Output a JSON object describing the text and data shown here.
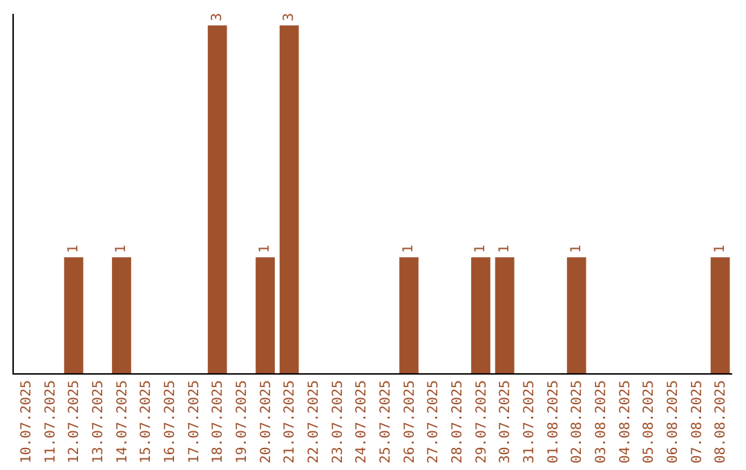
{
  "chart_data": {
    "type": "bar",
    "categories": [
      "10.07.2025",
      "11.07.2025",
      "12.07.2025",
      "13.07.2025",
      "14.07.2025",
      "15.07.2025",
      "16.07.2025",
      "17.07.2025",
      "18.07.2025",
      "19.07.2025",
      "20.07.2025",
      "21.07.2025",
      "22.07.2025",
      "23.07.2025",
      "24.07.2025",
      "25.07.2025",
      "26.07.2025",
      "27.07.2025",
      "28.07.2025",
      "29.07.2025",
      "30.07.2025",
      "31.07.2025",
      "01.08.2025",
      "02.08.2025",
      "03.08.2025",
      "04.08.2025",
      "05.08.2025",
      "06.08.2025",
      "07.08.2025",
      "08.08.2025"
    ],
    "values": [
      0,
      0,
      1,
      0,
      1,
      0,
      0,
      0,
      3,
      0,
      1,
      3,
      0,
      0,
      0,
      0,
      1,
      0,
      0,
      1,
      1,
      0,
      0,
      1,
      0,
      0,
      0,
      0,
      0,
      1
    ],
    "value_labels": [
      null,
      null,
      "1",
      null,
      "1",
      null,
      null,
      null,
      "3",
      null,
      "1",
      "3",
      null,
      null,
      null,
      null,
      "1",
      null,
      null,
      "1",
      "1",
      null,
      null,
      "1",
      null,
      null,
      null,
      null,
      null,
      "1"
    ],
    "color": "#a0522d",
    "ylim": [
      0,
      3.1
    ],
    "tick_labels": "x",
    "grid": false,
    "legend": false
  }
}
